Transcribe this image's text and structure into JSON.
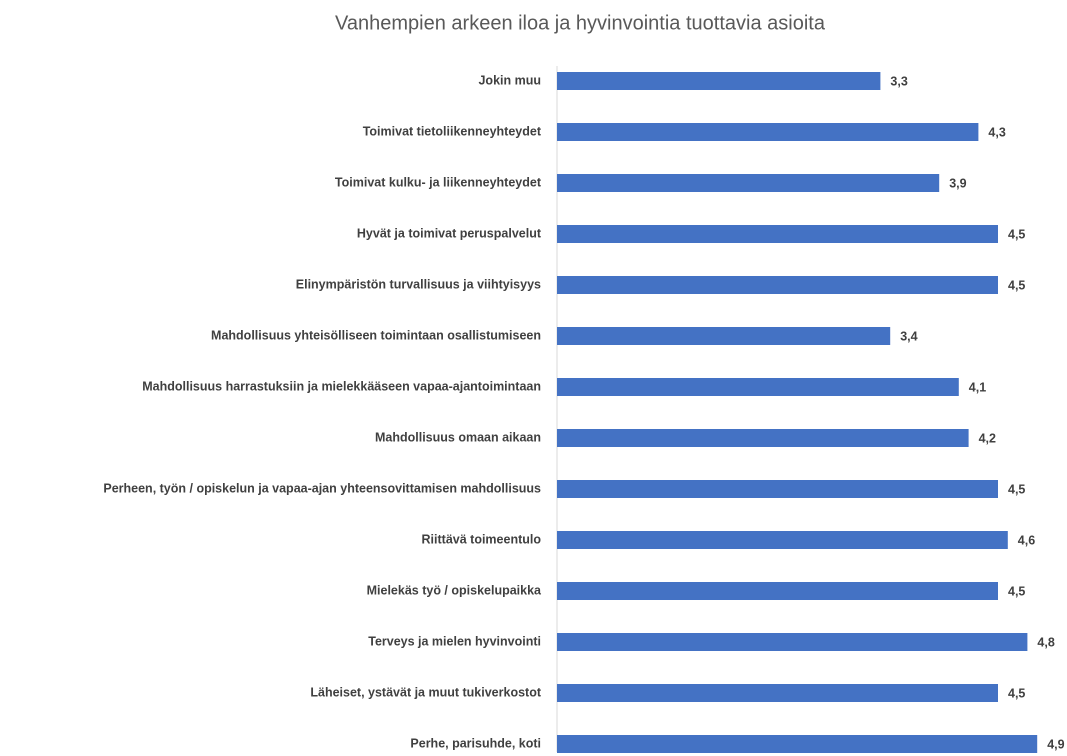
{
  "chart_data": {
    "type": "bar",
    "orientation": "horizontal",
    "title": "Vanhempien arkeen iloa ja hyvinvointia tuottavia asioita",
    "categories": [
      "Jokin muu",
      "Toimivat tietoliikenneyhteydet",
      "Toimivat kulku- ja liikenneyhteydet",
      "Hyvät ja toimivat peruspalvelut",
      "Elinympäristön turvallisuus ja viihtyisyys",
      "Mahdollisuus yhteisölliseen toimintaan osallistumiseen",
      "Mahdollisuus harrastuksiin ja mielekkääseen vapaa-ajantoimintaan",
      "Mahdollisuus omaan aikaan",
      "Perheen, työn / opiskelun ja vapaa-ajan yhteensovittamisen mahdollisuus",
      "Riittävä toimeentulo",
      "Mielekäs työ / opiskelupaikka",
      "Terveys ja mielen hyvinvointi",
      "Läheiset, ystävät ja muut tukiverkostot",
      "Perhe, parisuhde, koti"
    ],
    "values": [
      3.3,
      4.3,
      3.9,
      4.5,
      4.5,
      3.4,
      4.1,
      4.2,
      4.5,
      4.6,
      4.5,
      4.8,
      4.5,
      4.9
    ],
    "value_labels": [
      "3,3",
      "4,3",
      "3,9",
      "4,5",
      "4,5",
      "3,4",
      "4,1",
      "4,2",
      "4,5",
      "4,6",
      "4,5",
      "4,8",
      "4,5",
      "4,9"
    ],
    "color": "#4472c4",
    "xlim": [
      0,
      5
    ]
  }
}
